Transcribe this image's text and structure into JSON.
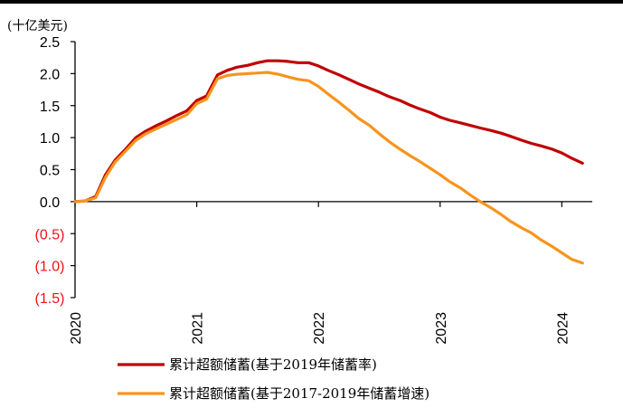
{
  "chart_data": {
    "type": "line",
    "unit_label": "(十亿美元)",
    "xlim": [
      2020.0,
      2024.25
    ],
    "ylim": [
      -1.5,
      2.5
    ],
    "y_ticks": [
      {
        "value": 2.5,
        "label": "2.5"
      },
      {
        "value": 2.0,
        "label": "2.0"
      },
      {
        "value": 1.5,
        "label": "1.5"
      },
      {
        "value": 1.0,
        "label": "1.0"
      },
      {
        "value": 0.5,
        "label": "0.5"
      },
      {
        "value": 0.0,
        "label": "0.0"
      },
      {
        "value": -0.5,
        "label": "(0.5)"
      },
      {
        "value": -1.0,
        "label": "(1.0)"
      },
      {
        "value": -1.5,
        "label": "(1.5)"
      }
    ],
    "x_ticks": [
      {
        "value": 2020,
        "label": "2020"
      },
      {
        "value": 2021,
        "label": "2021"
      },
      {
        "value": 2022,
        "label": "2022"
      },
      {
        "value": 2023,
        "label": "2023"
      },
      {
        "value": 2024,
        "label": "2024"
      }
    ],
    "negative_tick_color": "#e8141b",
    "legend_position": "bottom",
    "grid": false,
    "series": [
      {
        "name": "累计超额储蓄(基于2019年储蓄率)",
        "color": "#c00000",
        "points": [
          [
            2020.0,
            0.0
          ],
          [
            2020.08,
            0.01
          ],
          [
            2020.17,
            0.08
          ],
          [
            2020.25,
            0.42
          ],
          [
            2020.33,
            0.65
          ],
          [
            2020.42,
            0.83
          ],
          [
            2020.5,
            1.0
          ],
          [
            2020.58,
            1.1
          ],
          [
            2020.67,
            1.19
          ],
          [
            2020.75,
            1.26
          ],
          [
            2020.83,
            1.34
          ],
          [
            2020.92,
            1.42
          ],
          [
            2021.0,
            1.58
          ],
          [
            2021.08,
            1.65
          ],
          [
            2021.17,
            1.98
          ],
          [
            2021.25,
            2.05
          ],
          [
            2021.33,
            2.1
          ],
          [
            2021.42,
            2.13
          ],
          [
            2021.5,
            2.17
          ],
          [
            2021.58,
            2.2
          ],
          [
            2021.67,
            2.2
          ],
          [
            2021.75,
            2.19
          ],
          [
            2021.83,
            2.17
          ],
          [
            2021.92,
            2.17
          ],
          [
            2022.0,
            2.12
          ],
          [
            2022.08,
            2.05
          ],
          [
            2022.17,
            1.98
          ],
          [
            2022.25,
            1.91
          ],
          [
            2022.33,
            1.84
          ],
          [
            2022.42,
            1.77
          ],
          [
            2022.5,
            1.71
          ],
          [
            2022.58,
            1.64
          ],
          [
            2022.67,
            1.58
          ],
          [
            2022.75,
            1.51
          ],
          [
            2022.83,
            1.45
          ],
          [
            2022.92,
            1.39
          ],
          [
            2023.0,
            1.32
          ],
          [
            2023.08,
            1.27
          ],
          [
            2023.17,
            1.23
          ],
          [
            2023.25,
            1.19
          ],
          [
            2023.33,
            1.15
          ],
          [
            2023.42,
            1.11
          ],
          [
            2023.5,
            1.07
          ],
          [
            2023.58,
            1.02
          ],
          [
            2023.67,
            0.96
          ],
          [
            2023.75,
            0.91
          ],
          [
            2023.83,
            0.87
          ],
          [
            2023.92,
            0.82
          ],
          [
            2024.0,
            0.76
          ],
          [
            2024.08,
            0.68
          ],
          [
            2024.17,
            0.6
          ]
        ]
      },
      {
        "name": "累计超额储蓄(基于2017-2019年储蓄增速)",
        "color": "#f7941d",
        "points": [
          [
            2020.0,
            0.0
          ],
          [
            2020.08,
            0.01
          ],
          [
            2020.17,
            0.06
          ],
          [
            2020.25,
            0.38
          ],
          [
            2020.33,
            0.62
          ],
          [
            2020.42,
            0.8
          ],
          [
            2020.5,
            0.96
          ],
          [
            2020.58,
            1.06
          ],
          [
            2020.67,
            1.14
          ],
          [
            2020.75,
            1.21
          ],
          [
            2020.83,
            1.28
          ],
          [
            2020.92,
            1.36
          ],
          [
            2021.0,
            1.53
          ],
          [
            2021.08,
            1.6
          ],
          [
            2021.17,
            1.92
          ],
          [
            2021.25,
            1.97
          ],
          [
            2021.33,
            1.99
          ],
          [
            2021.42,
            2.0
          ],
          [
            2021.5,
            2.01
          ],
          [
            2021.58,
            2.02
          ],
          [
            2021.67,
            1.99
          ],
          [
            2021.75,
            1.95
          ],
          [
            2021.83,
            1.91
          ],
          [
            2021.92,
            1.89
          ],
          [
            2022.0,
            1.8
          ],
          [
            2022.08,
            1.68
          ],
          [
            2022.17,
            1.55
          ],
          [
            2022.25,
            1.43
          ],
          [
            2022.33,
            1.3
          ],
          [
            2022.42,
            1.19
          ],
          [
            2022.5,
            1.06
          ],
          [
            2022.58,
            0.94
          ],
          [
            2022.67,
            0.82
          ],
          [
            2022.75,
            0.72
          ],
          [
            2022.83,
            0.63
          ],
          [
            2022.92,
            0.52
          ],
          [
            2023.0,
            0.42
          ],
          [
            2023.08,
            0.31
          ],
          [
            2023.17,
            0.21
          ],
          [
            2023.25,
            0.1
          ],
          [
            2023.33,
            0.0
          ],
          [
            2023.42,
            -0.1
          ],
          [
            2023.5,
            -0.2
          ],
          [
            2023.58,
            -0.31
          ],
          [
            2023.67,
            -0.41
          ],
          [
            2023.75,
            -0.49
          ],
          [
            2023.83,
            -0.6
          ],
          [
            2023.92,
            -0.7
          ],
          [
            2024.0,
            -0.8
          ],
          [
            2024.08,
            -0.9
          ],
          [
            2024.17,
            -0.96
          ]
        ]
      }
    ]
  }
}
